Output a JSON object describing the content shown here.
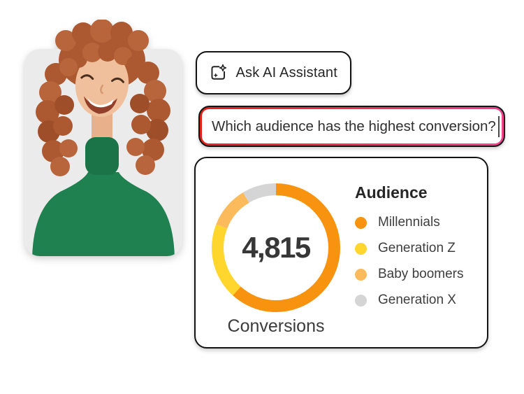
{
  "page": {
    "background_color": "#FFFFFF"
  },
  "photo": {
    "description": "Smiling woman with curly red hair wearing a green turtleneck",
    "background_color": "#EBEBEB",
    "hair_color": "#AC5830",
    "hair_highlight_color": "#B8653C",
    "sweater_color": "#1F8050",
    "collar_color": "#1A7448",
    "skin_color": "#F0BF9B"
  },
  "assistant_button": {
    "label": "Ask AI Assistant",
    "icon": "ai-sparkle-icon"
  },
  "query_input": {
    "value": "Which audience has the highest conversion?",
    "cursor_visible": true,
    "border_gradient_start": "#DF231A",
    "border_gradient_end": "#F4408F"
  },
  "chart_data": {
    "type": "pie",
    "variant": "donut",
    "title": "Audience",
    "center_value": "4,815",
    "center_label": "Conversions",
    "total_conversions": 4815,
    "legend_position": "right",
    "start_angle_deg": 0,
    "direction": "clockwise",
    "segments": [
      {
        "label": "Millennials",
        "percent": 61.7,
        "color": "#F7930E"
      },
      {
        "label": "Generation Z",
        "percent": 19.2,
        "color": "#FFD62E"
      },
      {
        "label": "Baby boomers",
        "percent": 10.5,
        "color": "#FBBB5C"
      },
      {
        "label": "Generation X",
        "percent": 8.6,
        "color": "#D5D5D5"
      }
    ]
  }
}
